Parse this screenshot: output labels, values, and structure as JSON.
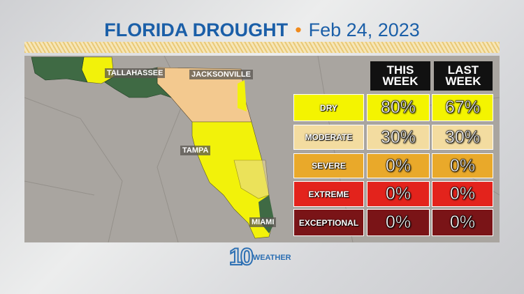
{
  "title": {
    "main": "FLORIDA DROUGHT",
    "separator": "•",
    "date": "Feb 24, 2023"
  },
  "cities": [
    "TALLAHASSEE",
    "JACKSONVILLE",
    "TAMPA",
    "MIAMI"
  ],
  "table": {
    "headers": [
      "THIS\nWEEK",
      "LAST\nWEEK"
    ],
    "rows": [
      {
        "label": "DRY",
        "this_week": "80%",
        "last_week": "67%",
        "color": "#f4f400"
      },
      {
        "label": "MODERATE",
        "this_week": "30%",
        "last_week": "30%",
        "color": "#f3dca0"
      },
      {
        "label": "SEVERE",
        "this_week": "0%",
        "last_week": "0%",
        "color": "#e9a92a"
      },
      {
        "label": "EXTREME",
        "this_week": "0%",
        "last_week": "0%",
        "color": "#e3231c"
      },
      {
        "label": "EXCEPTIONAL",
        "this_week": "0%",
        "last_week": "0%",
        "color": "#7a1417"
      }
    ]
  },
  "logo": {
    "number": "10",
    "text": "WEATHER"
  }
}
